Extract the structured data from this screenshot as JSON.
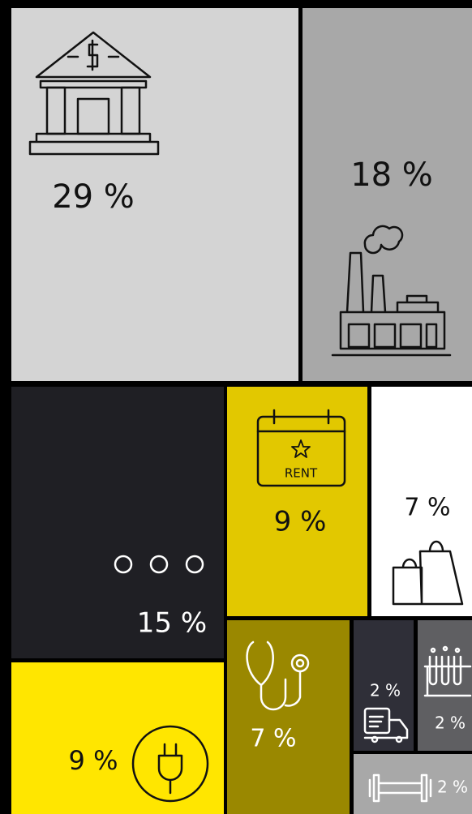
{
  "chart_data": {
    "type": "treemap",
    "values": [
      29,
      18,
      15,
      9,
      7,
      9,
      7,
      2,
      2,
      2
    ],
    "value_labels": [
      "29 %",
      "18 %",
      "15 %",
      "9 %",
      "7 %",
      "9 %",
      "7 %",
      "2 %",
      "2 %",
      "2 %"
    ],
    "colors": [
      "#d4d4d4",
      "#a8a8a8",
      "#1f1f24",
      "#e2c800",
      "#ffffff",
      "#ffe600",
      "#9a8800",
      "#2f2f38",
      "#5f5f62",
      "#a8a8a8"
    ],
    "annotations": [
      "RENT"
    ]
  }
}
